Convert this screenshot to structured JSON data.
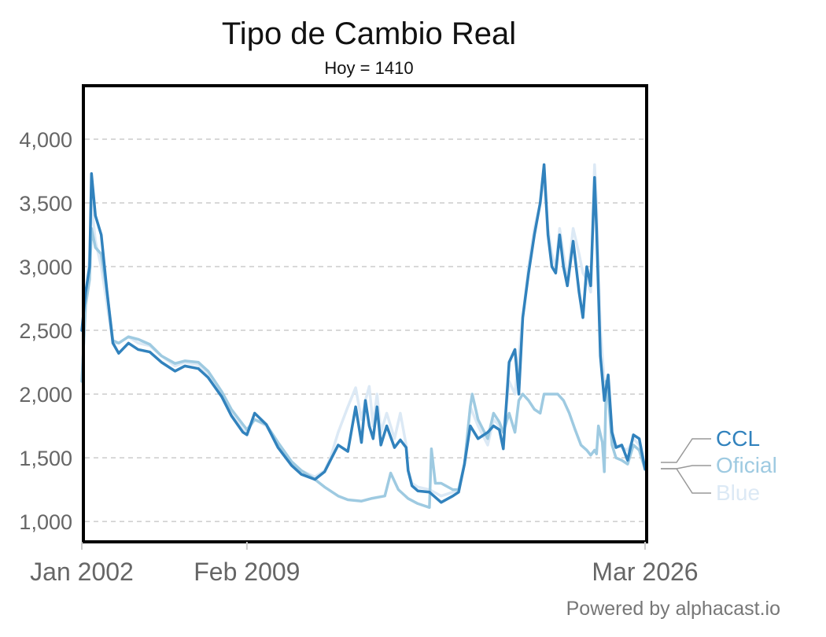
{
  "chart_data": {
    "type": "line",
    "title": "Tipo de Cambio Real",
    "subtitle": "Hoy = 1410",
    "xlabel": "",
    "ylabel": "",
    "x_start": "2002-01",
    "x_end": "2026-03",
    "x_ticks": [
      {
        "date": "2002-01",
        "label": "Jan 2002"
      },
      {
        "date": "2009-02",
        "label": "Feb 2009"
      },
      {
        "date": "2026-03",
        "label": "Mar 2026"
      }
    ],
    "ylim": [
      840,
      4420
    ],
    "y_ticks": [
      {
        "value": 1000,
        "label": "1,000"
      },
      {
        "value": 1500,
        "label": "1,500"
      },
      {
        "value": 2000,
        "label": "2,000"
      },
      {
        "value": 2500,
        "label": "2,500"
      },
      {
        "value": 3000,
        "label": "3,000"
      },
      {
        "value": 3500,
        "label": "3,500"
      },
      {
        "value": 4000,
        "label": "4,000"
      }
    ],
    "grid": true,
    "legend_position": "right",
    "series": [
      {
        "name": "Blue",
        "color": "#dce9f5",
        "points": [
          [
            "2002-01",
            2100
          ],
          [
            "2002-03",
            2700
          ],
          [
            "2002-05",
            3100
          ],
          [
            "2002-06",
            3500
          ],
          [
            "2002-08",
            3200
          ],
          [
            "2002-11",
            3000
          ],
          [
            "2003-02",
            2700
          ],
          [
            "2003-05",
            2400
          ],
          [
            "2003-08",
            2400
          ],
          [
            "2004-01",
            2450
          ],
          [
            "2004-06",
            2400
          ],
          [
            "2004-12",
            2380
          ],
          [
            "2005-06",
            2300
          ],
          [
            "2006-01",
            2220
          ],
          [
            "2006-06",
            2250
          ],
          [
            "2007-01",
            2230
          ],
          [
            "2007-06",
            2150
          ],
          [
            "2008-01",
            2000
          ],
          [
            "2008-06",
            1850
          ],
          [
            "2008-12",
            1720
          ],
          [
            "2009-02",
            1700
          ],
          [
            "2009-06",
            1800
          ],
          [
            "2009-12",
            1750
          ],
          [
            "2010-06",
            1600
          ],
          [
            "2011-01",
            1450
          ],
          [
            "2011-06",
            1400
          ],
          [
            "2012-01",
            1350
          ],
          [
            "2012-06",
            1400
          ],
          [
            "2012-09",
            1500
          ],
          [
            "2013-01",
            1700
          ],
          [
            "2013-06",
            1900
          ],
          [
            "2013-10",
            2050
          ],
          [
            "2014-01",
            1800
          ],
          [
            "2014-03",
            1950
          ],
          [
            "2014-05",
            2060
          ],
          [
            "2014-07",
            1750
          ],
          [
            "2014-09",
            2000
          ],
          [
            "2014-11",
            1700
          ],
          [
            "2015-02",
            1850
          ],
          [
            "2015-06",
            1650
          ],
          [
            "2015-09",
            1850
          ],
          [
            "2015-12",
            1600
          ],
          [
            "2016-01",
            1400
          ],
          [
            "2016-03",
            1300
          ],
          [
            "2016-06",
            1270
          ],
          [
            "2016-12",
            1250
          ],
          [
            "2017-06",
            1200
          ],
          [
            "2017-12",
            1230
          ],
          [
            "2018-03",
            1250
          ],
          [
            "2018-06",
            1450
          ],
          [
            "2018-09",
            1900
          ],
          [
            "2019-01",
            1750
          ],
          [
            "2019-06",
            1600
          ],
          [
            "2019-09",
            1800
          ],
          [
            "2019-12",
            1750
          ],
          [
            "2020-02",
            1700
          ],
          [
            "2020-05",
            2100
          ],
          [
            "2020-08",
            2000
          ],
          [
            "2020-10",
            2300
          ],
          [
            "2020-12",
            2600
          ],
          [
            "2021-03",
            3000
          ],
          [
            "2021-06",
            3300
          ],
          [
            "2021-09",
            3500
          ],
          [
            "2021-11",
            3700
          ],
          [
            "2022-01",
            3300
          ],
          [
            "2022-03",
            3100
          ],
          [
            "2022-05",
            3000
          ],
          [
            "2022-07",
            3300
          ],
          [
            "2022-09",
            3100
          ],
          [
            "2022-11",
            2900
          ],
          [
            "2023-02",
            3300
          ],
          [
            "2023-05",
            3100
          ],
          [
            "2023-07",
            2950
          ],
          [
            "2023-09",
            2900
          ],
          [
            "2023-11",
            2800
          ],
          [
            "2024-01",
            3800
          ],
          [
            "2024-02",
            3500
          ],
          [
            "2024-04",
            2500
          ],
          [
            "2024-06",
            2100
          ],
          [
            "2024-08",
            2100
          ],
          [
            "2024-10",
            1700
          ],
          [
            "2024-12",
            1600
          ],
          [
            "2025-03",
            1580
          ],
          [
            "2025-06",
            1560
          ],
          [
            "2025-09",
            1650
          ],
          [
            "2025-12",
            1600
          ],
          [
            "2026-03",
            1420
          ]
        ]
      },
      {
        "name": "Oficial",
        "color": "#9ecae1",
        "points": [
          [
            "2002-01",
            2100
          ],
          [
            "2002-03",
            2700
          ],
          [
            "2002-05",
            2900
          ],
          [
            "2002-06",
            3300
          ],
          [
            "2002-08",
            3150
          ],
          [
            "2002-11",
            3100
          ],
          [
            "2003-02",
            2800
          ],
          [
            "2003-05",
            2420
          ],
          [
            "2003-08",
            2400
          ],
          [
            "2004-01",
            2450
          ],
          [
            "2004-06",
            2430
          ],
          [
            "2004-12",
            2390
          ],
          [
            "2005-06",
            2300
          ],
          [
            "2006-01",
            2240
          ],
          [
            "2006-06",
            2260
          ],
          [
            "2007-01",
            2250
          ],
          [
            "2007-06",
            2180
          ],
          [
            "2008-01",
            2020
          ],
          [
            "2008-06",
            1880
          ],
          [
            "2008-12",
            1760
          ],
          [
            "2009-02",
            1720
          ],
          [
            "2009-06",
            1800
          ],
          [
            "2009-12",
            1760
          ],
          [
            "2010-06",
            1620
          ],
          [
            "2011-01",
            1470
          ],
          [
            "2011-06",
            1400
          ],
          [
            "2012-01",
            1330
          ],
          [
            "2012-06",
            1270
          ],
          [
            "2013-01",
            1200
          ],
          [
            "2013-06",
            1170
          ],
          [
            "2014-01",
            1160
          ],
          [
            "2014-06",
            1180
          ],
          [
            "2015-01",
            1200
          ],
          [
            "2015-04",
            1380
          ],
          [
            "2015-08",
            1250
          ],
          [
            "2016-01",
            1180
          ],
          [
            "2016-06",
            1140
          ],
          [
            "2016-12",
            1110
          ],
          [
            "2017-01",
            1570
          ],
          [
            "2017-03",
            1300
          ],
          [
            "2017-06",
            1300
          ],
          [
            "2017-12",
            1250
          ],
          [
            "2018-03",
            1250
          ],
          [
            "2018-06",
            1450
          ],
          [
            "2018-09",
            1900
          ],
          [
            "2018-10",
            2000
          ],
          [
            "2019-01",
            1800
          ],
          [
            "2019-06",
            1650
          ],
          [
            "2019-09",
            1850
          ],
          [
            "2019-12",
            1780
          ],
          [
            "2020-02",
            1700
          ],
          [
            "2020-05",
            1850
          ],
          [
            "2020-08",
            1700
          ],
          [
            "2020-10",
            1950
          ],
          [
            "2020-12",
            2000
          ],
          [
            "2021-03",
            1950
          ],
          [
            "2021-06",
            1880
          ],
          [
            "2021-09",
            1850
          ],
          [
            "2021-11",
            2000
          ],
          [
            "2022-06",
            2000
          ],
          [
            "2022-09",
            1950
          ],
          [
            "2022-12",
            1850
          ],
          [
            "2023-03",
            1720
          ],
          [
            "2023-06",
            1600
          ],
          [
            "2023-09",
            1560
          ],
          [
            "2023-11",
            1520
          ],
          [
            "2024-01",
            1560
          ],
          [
            "2024-02",
            1530
          ],
          [
            "2024-03",
            1750
          ],
          [
            "2024-05",
            1620
          ],
          [
            "2024-06",
            1390
          ],
          [
            "2024-07",
            2100
          ],
          [
            "2024-08",
            2000
          ],
          [
            "2024-10",
            1600
          ],
          [
            "2024-12",
            1500
          ],
          [
            "2025-03",
            1480
          ],
          [
            "2025-06",
            1450
          ],
          [
            "2025-09",
            1600
          ],
          [
            "2025-12",
            1560
          ],
          [
            "2026-03",
            1410
          ]
        ]
      },
      {
        "name": "CCL",
        "color": "#3182bd",
        "points": [
          [
            "2002-01",
            2500
          ],
          [
            "2002-03",
            2800
          ],
          [
            "2002-05",
            3000
          ],
          [
            "2002-06",
            3730
          ],
          [
            "2002-08",
            3400
          ],
          [
            "2002-11",
            3250
          ],
          [
            "2003-02",
            2800
          ],
          [
            "2003-05",
            2400
          ],
          [
            "2003-08",
            2320
          ],
          [
            "2004-01",
            2400
          ],
          [
            "2004-06",
            2350
          ],
          [
            "2004-12",
            2330
          ],
          [
            "2005-06",
            2250
          ],
          [
            "2006-01",
            2180
          ],
          [
            "2006-06",
            2220
          ],
          [
            "2007-01",
            2200
          ],
          [
            "2007-06",
            2130
          ],
          [
            "2008-01",
            1980
          ],
          [
            "2008-06",
            1830
          ],
          [
            "2008-12",
            1700
          ],
          [
            "2009-02",
            1680
          ],
          [
            "2009-06",
            1850
          ],
          [
            "2009-12",
            1760
          ],
          [
            "2010-06",
            1580
          ],
          [
            "2011-01",
            1440
          ],
          [
            "2011-06",
            1370
          ],
          [
            "2012-01",
            1330
          ],
          [
            "2012-06",
            1390
          ],
          [
            "2012-09",
            1480
          ],
          [
            "2013-01",
            1600
          ],
          [
            "2013-06",
            1550
          ],
          [
            "2013-10",
            1900
          ],
          [
            "2014-01",
            1620
          ],
          [
            "2014-03",
            1950
          ],
          [
            "2014-05",
            1750
          ],
          [
            "2014-07",
            1650
          ],
          [
            "2014-09",
            1900
          ],
          [
            "2014-11",
            1600
          ],
          [
            "2015-02",
            1750
          ],
          [
            "2015-06",
            1580
          ],
          [
            "2015-09",
            1640
          ],
          [
            "2015-12",
            1580
          ],
          [
            "2016-01",
            1400
          ],
          [
            "2016-03",
            1280
          ],
          [
            "2016-06",
            1240
          ],
          [
            "2016-12",
            1230
          ],
          [
            "2017-06",
            1150
          ],
          [
            "2017-12",
            1200
          ],
          [
            "2018-03",
            1230
          ],
          [
            "2018-06",
            1450
          ],
          [
            "2018-09",
            1750
          ],
          [
            "2019-01",
            1650
          ],
          [
            "2019-06",
            1700
          ],
          [
            "2019-09",
            1750
          ],
          [
            "2019-12",
            1720
          ],
          [
            "2020-02",
            1570
          ],
          [
            "2020-05",
            2250
          ],
          [
            "2020-08",
            2350
          ],
          [
            "2020-10",
            2000
          ],
          [
            "2020-12",
            2600
          ],
          [
            "2021-03",
            2950
          ],
          [
            "2021-06",
            3250
          ],
          [
            "2021-09",
            3500
          ],
          [
            "2021-11",
            3800
          ],
          [
            "2022-01",
            3250
          ],
          [
            "2022-03",
            3000
          ],
          [
            "2022-05",
            2950
          ],
          [
            "2022-07",
            3250
          ],
          [
            "2022-09",
            3000
          ],
          [
            "2022-11",
            2850
          ],
          [
            "2023-02",
            3200
          ],
          [
            "2023-05",
            2800
          ],
          [
            "2023-07",
            2600
          ],
          [
            "2023-09",
            3000
          ],
          [
            "2023-11",
            2850
          ],
          [
            "2024-01",
            3700
          ],
          [
            "2024-02",
            3300
          ],
          [
            "2024-04",
            2300
          ],
          [
            "2024-06",
            1950
          ],
          [
            "2024-08",
            2150
          ],
          [
            "2024-10",
            1700
          ],
          [
            "2024-12",
            1580
          ],
          [
            "2025-03",
            1600
          ],
          [
            "2025-06",
            1480
          ],
          [
            "2025-09",
            1680
          ],
          [
            "2025-12",
            1650
          ],
          [
            "2026-03",
            1410
          ]
        ]
      }
    ],
    "credit": "Powered by alphacast.io"
  }
}
